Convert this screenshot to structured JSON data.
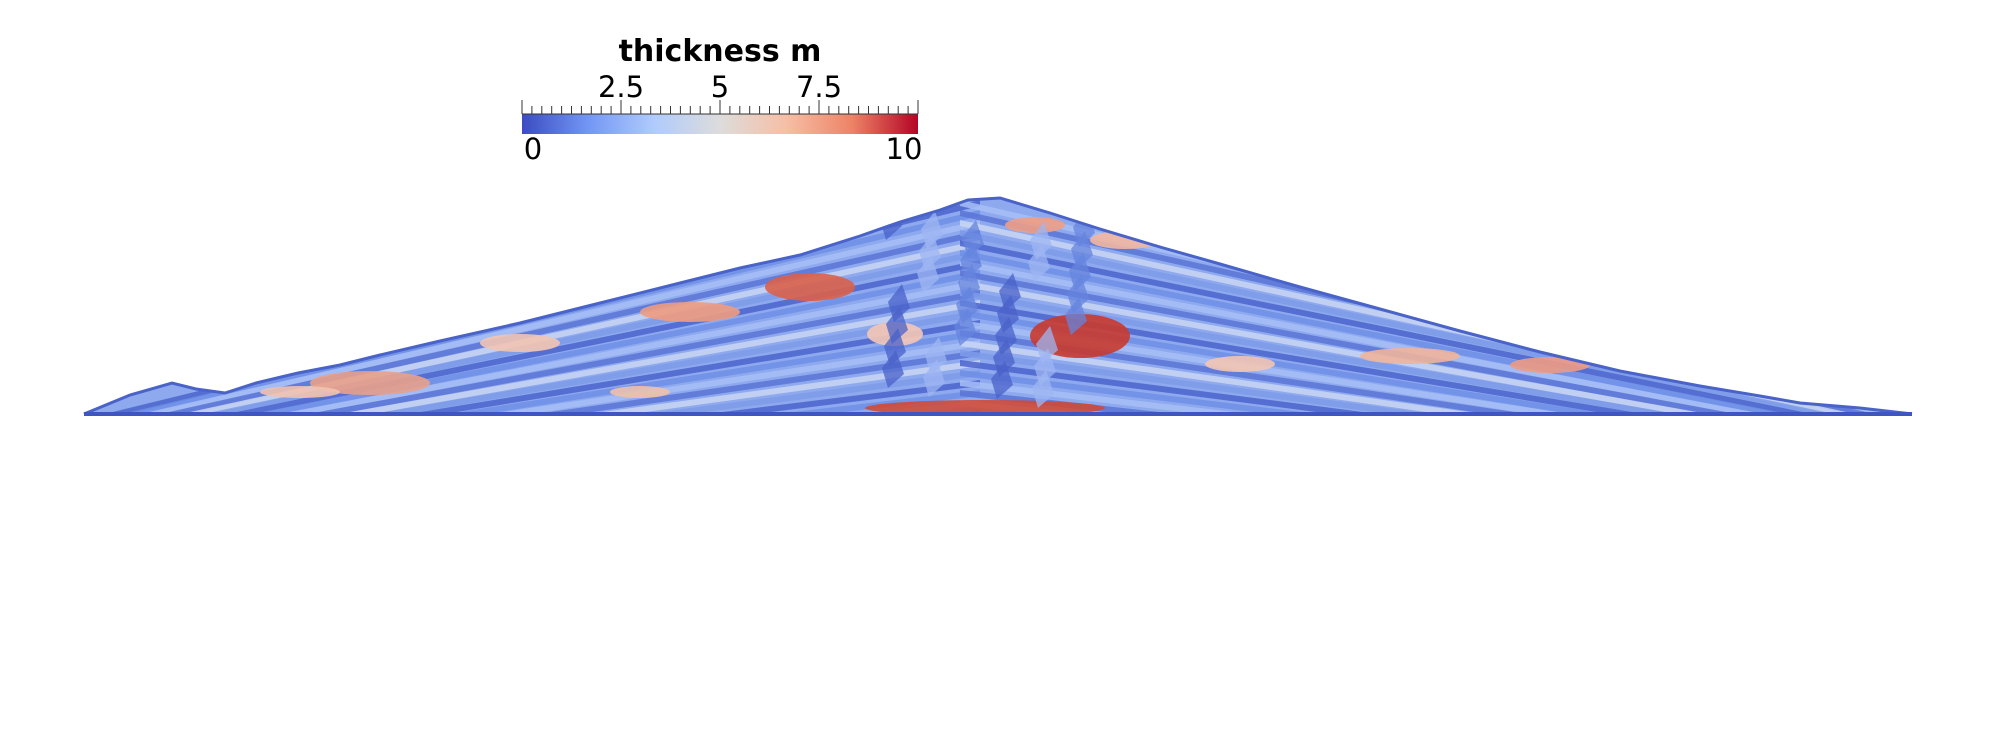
{
  "colorbar": {
    "title": "thickness m",
    "min_label": "0",
    "max_label": "10",
    "tick_labels": [
      "2.5",
      "5",
      "7.5"
    ],
    "range": [
      0,
      10
    ],
    "colormap": [
      "#3b4cc0",
      "#7396f5",
      "#b0cbfc",
      "#dddcdc",
      "#f6bfa6",
      "#ed8366",
      "#b40426"
    ]
  },
  "section": {
    "description_colors": {
      "low": "#3b4cc0",
      "mid": "#dcdcdc",
      "high": "#b40426"
    }
  }
}
